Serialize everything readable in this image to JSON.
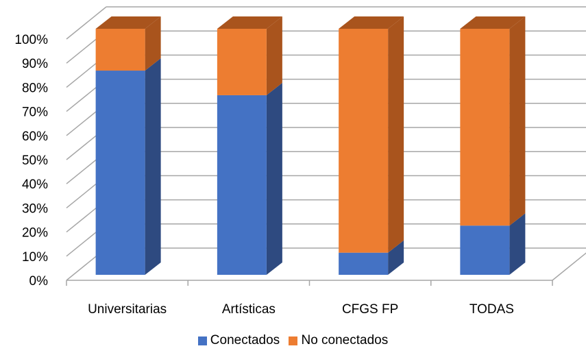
{
  "chart_data": {
    "type": "bar",
    "stacked": true,
    "three_d": true,
    "categories": [
      "Universitarias",
      "Artísticas",
      "CFGS FP",
      "TODAS"
    ],
    "series": [
      {
        "name": "Conectados",
        "values": [
          83,
          73,
          9,
          20
        ],
        "color": "#4472C4",
        "side_color": "#2E4A80"
      },
      {
        "name": "No conectados",
        "values": [
          17,
          27,
          91,
          80
        ],
        "color": "#ED7D31",
        "side_color": "#A9541D"
      }
    ],
    "yticks": [
      "0%",
      "10%",
      "20%",
      "30%",
      "40%",
      "50%",
      "60%",
      "70%",
      "80%",
      "90%",
      "100%"
    ],
    "ylim": [
      0,
      100
    ],
    "grid": true,
    "legend_position": "bottom"
  }
}
